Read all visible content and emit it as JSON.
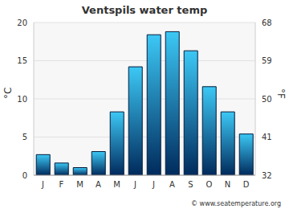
{
  "chart_data": {
    "type": "bar",
    "title": "Ventspils water temp",
    "footer": "© www.seatemperature.org",
    "y_label": "°C",
    "y2_label": "°F",
    "categories": [
      "J",
      "F",
      "M",
      "A",
      "M",
      "J",
      "J",
      "A",
      "S",
      "O",
      "N",
      "D"
    ],
    "values": [
      2.7,
      1.6,
      1.0,
      3.1,
      8.3,
      14.2,
      18.4,
      18.8,
      16.3,
      11.6,
      8.3,
      5.4
    ],
    "color": "#3cc8f5",
    "ylim": [
      0,
      20
    ],
    "yticks": [
      0,
      5,
      10,
      15,
      20
    ],
    "y2lim": [
      32,
      68
    ],
    "y2ticks": [
      32,
      41,
      50,
      59,
      68
    ],
    "grid": true
  }
}
